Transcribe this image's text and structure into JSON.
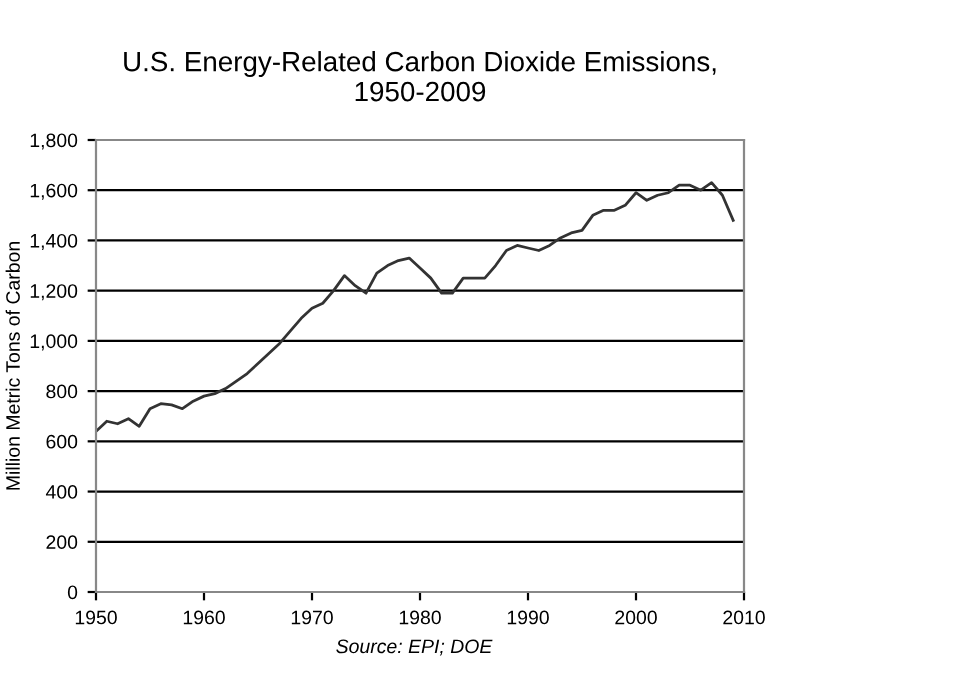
{
  "chart_data": {
    "type": "line",
    "title": "U.S. Energy-Related Carbon Dioxide Emissions,\n1950-2009",
    "ylabel": "Million Metric Tons of Carbon",
    "annotations": [
      "Source: EPI; DOE"
    ],
    "x": [
      1950,
      1951,
      1952,
      1953,
      1954,
      1955,
      1956,
      1957,
      1958,
      1959,
      1960,
      1961,
      1962,
      1963,
      1964,
      1965,
      1966,
      1967,
      1968,
      1969,
      1970,
      1971,
      1972,
      1973,
      1974,
      1975,
      1976,
      1977,
      1978,
      1979,
      1980,
      1981,
      1982,
      1983,
      1984,
      1985,
      1986,
      1987,
      1988,
      1989,
      1990,
      1991,
      1992,
      1993,
      1994,
      1995,
      1996,
      1997,
      1998,
      1999,
      2000,
      2001,
      2002,
      2003,
      2004,
      2005,
      2006,
      2007,
      2008,
      2009
    ],
    "series": [
      {
        "color": "#333333",
        "values": [
          640,
          680,
          670,
          690,
          660,
          730,
          750,
          745,
          730,
          760,
          780,
          790,
          810,
          840,
          870,
          910,
          950,
          990,
          1040,
          1090,
          1130,
          1150,
          1200,
          1260,
          1220,
          1190,
          1270,
          1300,
          1320,
          1330,
          1290,
          1250,
          1190,
          1190,
          1250,
          1250,
          1250,
          1300,
          1360,
          1380,
          1370,
          1360,
          1380,
          1410,
          1430,
          1440,
          1500,
          1520,
          1520,
          1540,
          1590,
          1560,
          1580,
          1590,
          1620,
          1620,
          1600,
          1630,
          1580,
          1480
        ]
      }
    ],
    "xlim": [
      1950,
      2010
    ],
    "xticks": [
      1950,
      1960,
      1970,
      1980,
      1990,
      2000,
      2010
    ],
    "ylim": [
      0,
      1800
    ],
    "yticks": [
      {
        "value": 0,
        "label": "0"
      },
      {
        "value": 200,
        "label": "200"
      },
      {
        "value": 400,
        "label": "400"
      },
      {
        "value": 600,
        "label": "600"
      },
      {
        "value": 800,
        "label": "800"
      },
      {
        "value": 1000,
        "label": "1,000"
      },
      {
        "value": 1200,
        "label": "1,200"
      },
      {
        "value": 1400,
        "label": "1,400"
      },
      {
        "value": 1600,
        "label": "1,600"
      },
      {
        "value": 1800,
        "label": "1,800"
      }
    ],
    "grid": "y",
    "legend": false,
    "marker": "none",
    "line_style": "solid"
  }
}
